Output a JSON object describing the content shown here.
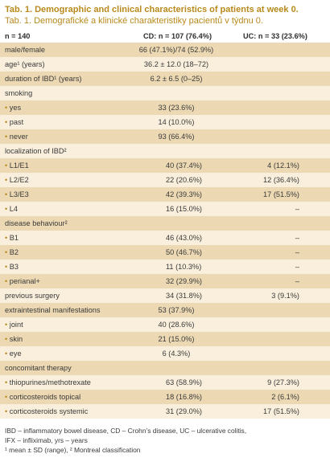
{
  "title": "Tab. 1. Demographic and clinical characteristics of patients at week 0.",
  "subtitle": "Tab. 1. Demografické a klinické charakteristiky pacientů v týdnu 0.",
  "header": {
    "n": "n = 140",
    "cd": "CD: n = 107 (76.4%)",
    "uc": "UC: n = 33 (23.6%)"
  },
  "rows": [
    {
      "label": "male/female",
      "span": "66 (47.1%)/74 (52.9%)"
    },
    {
      "label": "age¹ (years)",
      "span": "36.2 ± 12.0 (18–72)"
    },
    {
      "label": "duration of IBD¹ (years)",
      "span": "6.2 ± 6.5 (0–25)"
    },
    {
      "label": "smoking"
    },
    {
      "label": "yes",
      "bullet": true,
      "span": "33 (23.6%)"
    },
    {
      "label": "past",
      "bullet": true,
      "span": "14 (10.0%)"
    },
    {
      "label": "never",
      "bullet": true,
      "span": "93 (66.4%)"
    },
    {
      "label": "localization of IBD²"
    },
    {
      "label": "L1/E1",
      "bullet": true,
      "cd": "40 (37.4%)",
      "uc": "4 (12.1%)"
    },
    {
      "label": "L2/E2",
      "bullet": true,
      "cd": "22 (20.6%)",
      "uc": "12 (36.4%)"
    },
    {
      "label": "L3/E3",
      "bullet": true,
      "cd": "42 (39.3%)",
      "uc": "17 (51.5%)"
    },
    {
      "label": "L4",
      "bullet": true,
      "cd": "16 (15.0%)",
      "uc": "–"
    },
    {
      "label": "disease behaviour²"
    },
    {
      "label": "B1",
      "bullet": true,
      "cd": "46 (43.0%)",
      "uc": "–"
    },
    {
      "label": "B2",
      "bullet": true,
      "cd": "50 (46.7%)",
      "uc": "–"
    },
    {
      "label": "B3",
      "bullet": true,
      "cd": "11 (10.3%)",
      "uc": "–"
    },
    {
      "label": "perianal+",
      "bullet": true,
      "cd": "32 (29.9%)",
      "uc": "–"
    },
    {
      "label": "previous surgery",
      "cd": "34 (31.8%)",
      "uc": "3 (9.1%)"
    },
    {
      "label": "extraintestinal manifestations",
      "span": "53 (37.9%)"
    },
    {
      "label": "joint",
      "bullet": true,
      "span": "40 (28.6%)"
    },
    {
      "label": "skin",
      "bullet": true,
      "span": "21 (15.0%)"
    },
    {
      "label": "eye",
      "bullet": true,
      "span": "6 (4.3%)"
    },
    {
      "label": "concomitant therapy"
    },
    {
      "label": "thiopurines/methotrexate",
      "bullet": true,
      "cd": "63 (58.9%)",
      "uc": "9 (27.3%)"
    },
    {
      "label": "corticosteroids topical",
      "bullet": true,
      "cd": "18 (16.8%)",
      "uc": "2 (6.1%)"
    },
    {
      "label": "corticosteroids systemic",
      "bullet": true,
      "cd": "31 (29.0%)",
      "uc": "17 (51.5%)"
    }
  ],
  "footnote": {
    "line1": "IBD – inflammatory bowel disease, CD – Crohn’s disease, UC – ulcerative colitis,",
    "line2": "IFX – infliximab, yrs – years",
    "line3": "¹ mean ± SD (range), ² Montreal classification"
  },
  "colors": {
    "accent": "#b88a1c",
    "shade_dark": "#ecd9b3",
    "shade_light": "#f9efdc"
  }
}
